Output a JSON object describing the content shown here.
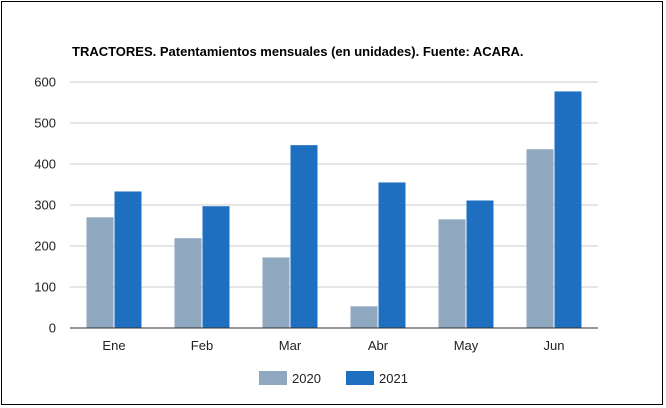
{
  "chart_data": {
    "type": "bar",
    "title": "TRACTORES. Patentamientos mensuales (en unidades). Fuente: ACARA.",
    "categories": [
      "Ene",
      "Feb",
      "Mar",
      "Abr",
      "May",
      "Jun"
    ],
    "series": [
      {
        "name": "2020",
        "color": "#8fa8c0",
        "values": [
          270,
          219,
          172,
          53,
          265,
          436
        ]
      },
      {
        "name": "2021",
        "color": "#1e6fbf",
        "values": [
          333,
          297,
          446,
          355,
          311,
          577
        ]
      }
    ],
    "ylim": [
      0,
      600
    ],
    "yticks": [
      "0",
      "100",
      "200",
      "300",
      "400",
      "500",
      "600"
    ],
    "grid": true,
    "legend_position": "bottom"
  }
}
